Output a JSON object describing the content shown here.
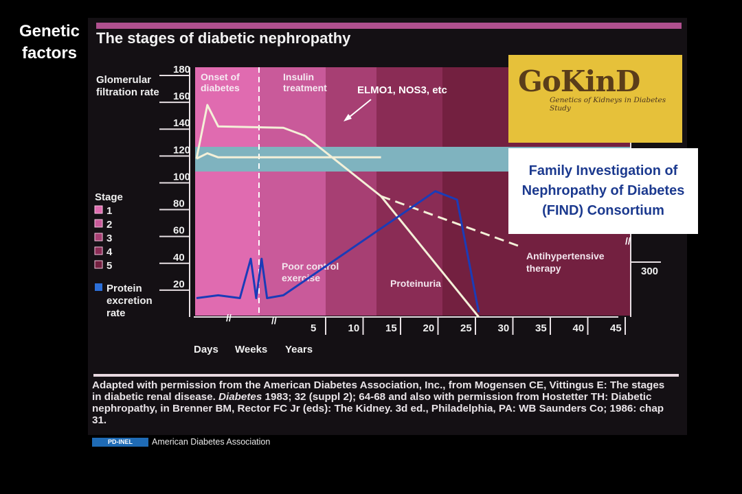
{
  "side_title": "Genetic factors",
  "chart_title": "The stages of diabetic nephropathy",
  "annotation": "ELMO1, NOS3, etc",
  "find_box": "Family Investigation of Nephropathy of Diabetes (FIND) Consortium",
  "logo": {
    "name": "GoKinD",
    "subtitle": "Genetics of Kidneys in Diabetes Study"
  },
  "citation": {
    "part1": "Adapted with permission from the American Diabetes Association, Inc., from Mogensen CE, Vittingus E: The stages in diabetic renal disease. ",
    "journal": "Diabetes",
    "part2": " 1983; 32 (suppl 2); 64-68 and also with permission from Hostetter TH: Diabetic nephropathy, in Brenner BM, Rector FC Jr (eds): The Kidney. 3d ed., Philadelphia, PA: WB Saunders Co; 1986: chap 31."
  },
  "credit": "American Diabetes Association",
  "pd_badge": "PD-INEL",
  "colors": {
    "stage1": "#e06bb0",
    "stage2": "#c95a9a",
    "stage3": "#a73f73",
    "stage4": "#8a2c55",
    "stage5": "#732040",
    "normal_band": "#7fb3bf",
    "protein": "#1a3cb8",
    "gfr": "#f4f0d8"
  },
  "chart_data": {
    "type": "line",
    "ylabel": "Glomerular filtration rate",
    "y_ticks": [
      180,
      160,
      140,
      120,
      100,
      80,
      60,
      40,
      20
    ],
    "ylim": [
      0,
      180
    ],
    "right_tick": "300",
    "x_unit_labels": [
      "Days",
      "Weeks",
      "Years"
    ],
    "x_ticks": [
      "5",
      "10",
      "15",
      "20",
      "25",
      "30",
      "35",
      "40",
      "45"
    ],
    "phase_labels": [
      "Onset of diabetes",
      "Insulin treatment"
    ],
    "legend": {
      "title": "Stage",
      "stages": [
        "1",
        "2",
        "3",
        "4",
        "5"
      ],
      "protein_label": "Protein excretion rate"
    },
    "annotations": [
      "Poor control exercise",
      "Proteinuria",
      "Antihypertensive therapy"
    ],
    "normal_band_gfr": [
      100,
      120
    ],
    "series": [
      {
        "name": "",
        "values_desc": "gfr",
        "points": [
          [
            0,
            118
          ],
          [
            1,
            158
          ],
          [
            2,
            142
          ],
          [
            8,
            141
          ],
          [
            10,
            135
          ],
          [
            17,
            90
          ],
          [
            26,
            0
          ]
        ]
      },
      {
        "name": "",
        "values_desc": "gfr_untreated",
        "points": [
          [
            0,
            118
          ],
          [
            1,
            122
          ],
          [
            2,
            119
          ],
          [
            8,
            119
          ],
          [
            17,
            119
          ]
        ]
      },
      {
        "name": "",
        "values_desc": "gfr_antihypertensive",
        "points": [
          [
            17,
            90
          ],
          [
            30,
            52
          ]
        ]
      },
      {
        "name": "",
        "values_desc": "protein",
        "points": [
          [
            0,
            10
          ],
          [
            2,
            12
          ],
          [
            4,
            10
          ],
          [
            5,
            38
          ],
          [
            5.5,
            10
          ],
          [
            6,
            38
          ],
          [
            6.5,
            10
          ],
          [
            8,
            12
          ],
          [
            22,
            86
          ],
          [
            24,
            80
          ],
          [
            26,
            0
          ]
        ]
      }
    ]
  }
}
